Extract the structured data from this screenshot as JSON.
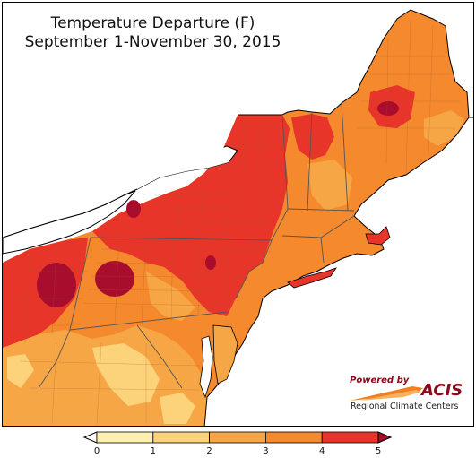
{
  "map": {
    "title": "Temperature Departure (F)",
    "subtitle": "September 1-November 30, 2015",
    "background_color": "#ffffff",
    "lake_color": "#ffffff",
    "region_border_color": "#555555"
  },
  "logo": {
    "powered_by": "Powered by",
    "name": "ACIS",
    "org": "Regional Climate Centers",
    "brand_color": "#8b0a1a",
    "swoosh_color": "#f08020"
  },
  "legend": {
    "ticks": [
      "0",
      "1",
      "2",
      "3",
      "4",
      "5"
    ],
    "bins": [
      {
        "range": "<0",
        "color": "#ffffff"
      },
      {
        "range": "0-1",
        "color": "#fff0b0"
      },
      {
        "range": "1-2",
        "color": "#fcd27a"
      },
      {
        "range": "2-3",
        "color": "#f7a645"
      },
      {
        "range": "3-4",
        "color": "#f4892e"
      },
      {
        "range": "4-5",
        "color": "#e8352a"
      },
      {
        "range": ">5",
        "color": "#a80d2e"
      }
    ],
    "open_ends": true
  }
}
